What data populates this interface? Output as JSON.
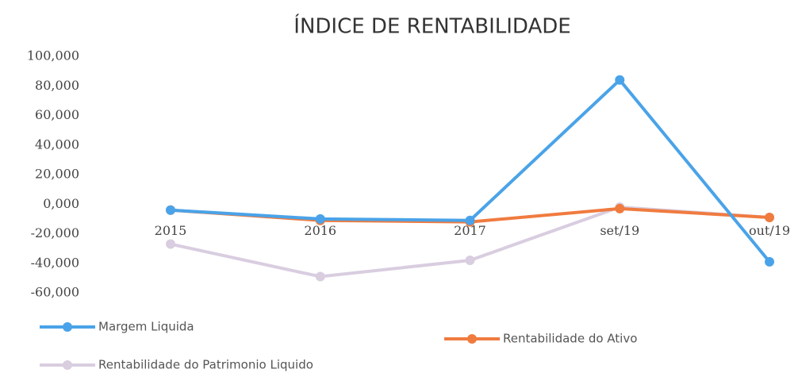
{
  "chart_data": {
    "type": "line",
    "title": "ÍNDICE DE RENTABILIDADE",
    "categories": [
      "2015",
      "2016",
      "2017",
      "set/19",
      "out/19"
    ],
    "series": [
      {
        "name": "Margem Liquida",
        "color": "#4aa3e8",
        "values": [
          -4,
          -10,
          -11,
          84,
          -39
        ]
      },
      {
        "name": "Rentabilidade do Ativo",
        "color": "#f07b3f",
        "values": [
          -4,
          -11,
          -12,
          -3,
          -9
        ]
      },
      {
        "name": "Rentabilidade do Patrimonio Liquido",
        "color": "#d9cde0",
        "values": [
          -27,
          -49,
          -38,
          -2,
          -9
        ]
      }
    ],
    "ylim": [
      -60,
      100
    ],
    "yticks": [
      {
        "value": 100,
        "label": "100,000"
      },
      {
        "value": 80,
        "label": "80,000"
      },
      {
        "value": 60,
        "label": "60,000"
      },
      {
        "value": 40,
        "label": "40,000"
      },
      {
        "value": 20,
        "label": "20,000"
      },
      {
        "value": 0,
        "label": "0,000"
      },
      {
        "value": -20,
        "label": "-20,000"
      },
      {
        "value": -40,
        "label": "-40,000"
      },
      {
        "value": -60,
        "label": "-60,000"
      }
    ],
    "grid": false,
    "legend": "bottom"
  }
}
